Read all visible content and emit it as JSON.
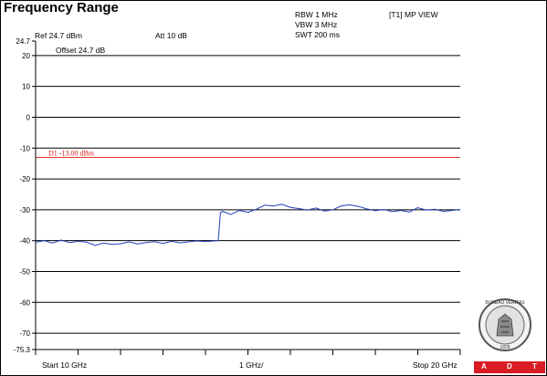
{
  "page": {
    "title": "Frequency Range",
    "header": {
      "ref": "Ref 24.7 dBm",
      "att": "Att 10 dB",
      "rbw": "RBW 1 MHz",
      "vbw": "VBW 3 MHz",
      "swt": "SWT 200 ms",
      "trace_mode": "[T1] MP VIEW",
      "offset": "Offset 24.7 dB"
    },
    "footer": {
      "start": "Start 10 GHz",
      "span_div": "1 GHz/",
      "stop": "Stop 20 GHz"
    },
    "logo": {
      "text_top": "BUREAU VERITAS",
      "text_bottom": "1828",
      "brand": [
        "A",
        "D",
        "T"
      ],
      "brand_color": "#d91c24"
    }
  },
  "chart_data": {
    "type": "line",
    "title": "Frequency Range",
    "xlabel": "",
    "ylabel": "",
    "xlim": [
      10,
      20
    ],
    "ylim": [
      -75.3,
      24.7
    ],
    "x_unit": "GHz",
    "y_unit": "dBm",
    "y_ticks": [
      {
        "label": "24.7",
        "value": 24.7
      },
      {
        "label": "20",
        "value": 20
      },
      {
        "label": "10",
        "value": 10
      },
      {
        "label": "0",
        "value": 0
      },
      {
        "label": "-10",
        "value": -10
      },
      {
        "label": "-20",
        "value": -20
      },
      {
        "label": "-30",
        "value": -30
      },
      {
        "label": "-40",
        "value": -40
      },
      {
        "label": "-50",
        "value": -50
      },
      {
        "label": "-60",
        "value": -60
      },
      {
        "label": "-70",
        "value": -70
      },
      {
        "label": "-75.3",
        "value": -75.3
      }
    ],
    "gridlines": [
      20,
      10,
      0,
      -10,
      -20,
      -30,
      -40,
      -50,
      -60,
      -70
    ],
    "x_ticks": [
      10,
      11,
      12,
      13,
      14,
      15,
      16,
      17,
      18,
      19,
      20
    ],
    "limit_line": {
      "label": "D1 -13.00 dBm",
      "value": -13.0,
      "color": "#e0201a"
    },
    "trace_color": "#1f3fbf",
    "series": [
      {
        "x": [
          10.0,
          10.2,
          10.4,
          10.6,
          10.8,
          11.0,
          11.2,
          11.4,
          11.6,
          11.8,
          12.0,
          12.2,
          12.4,
          12.6,
          12.8,
          13.0,
          13.2,
          13.4,
          13.6,
          13.8,
          14.0,
          14.2,
          14.3,
          14.35,
          14.4,
          14.6,
          14.8,
          15.0,
          15.2,
          15.4,
          15.6,
          15.8,
          16.0,
          16.2,
          16.4,
          16.6,
          16.8,
          17.0,
          17.2,
          17.4,
          17.6,
          17.8,
          18.0,
          18.2,
          18.4,
          18.6,
          18.8,
          19.0,
          19.2,
          19.4,
          19.6,
          19.8,
          20.0
        ],
        "y": [
          -40.5,
          -40.0,
          -40.8,
          -39.8,
          -40.6,
          -40.2,
          -40.5,
          -41.5,
          -40.8,
          -41.2,
          -41.0,
          -40.4,
          -41.1,
          -40.6,
          -40.3,
          -40.9,
          -40.2,
          -40.7,
          -40.4,
          -40.1,
          -40.3,
          -40.1,
          -40.0,
          -31.0,
          -30.5,
          -31.5,
          -30.2,
          -30.8,
          -29.8,
          -28.5,
          -28.8,
          -28.2,
          -29.2,
          -29.6,
          -30.1,
          -29.4,
          -30.4,
          -30.0,
          -28.7,
          -28.4,
          -28.9,
          -29.7,
          -30.3,
          -29.9,
          -30.6,
          -30.2,
          -30.7,
          -29.3,
          -30.1,
          -29.8,
          -30.5,
          -30.2,
          -29.9
        ]
      }
    ]
  }
}
